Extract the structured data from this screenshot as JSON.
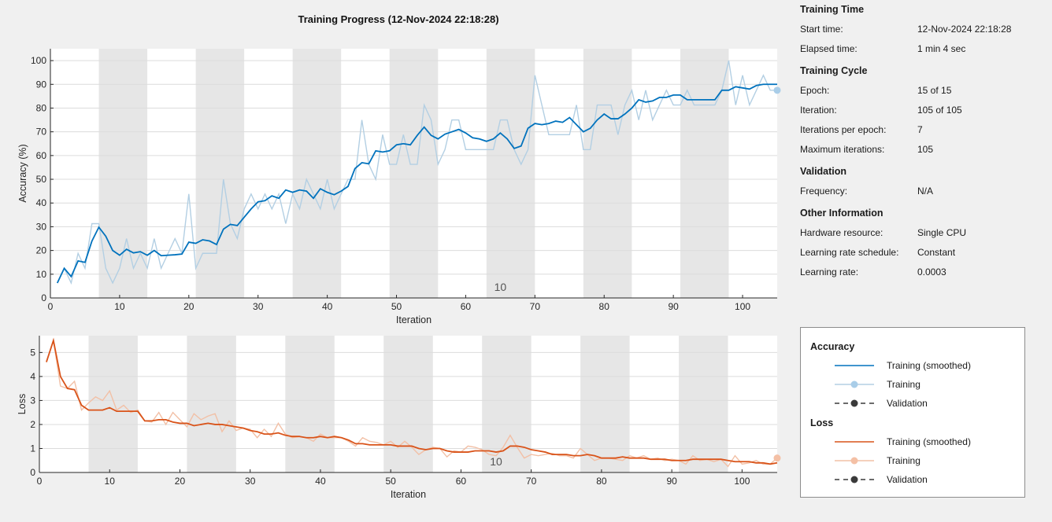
{
  "title": "Training Progress (12-Nov-2024 22:18:28)",
  "info": {
    "sections": [
      {
        "heading": "Training Time",
        "rows": [
          {
            "label": "Start time:",
            "value": "12-Nov-2024 22:18:28"
          },
          {
            "label": "Elapsed time:",
            "value": "1 min 4 sec"
          }
        ]
      },
      {
        "heading": "Training Cycle",
        "rows": [
          {
            "label": "Epoch:",
            "value": "15 of 15"
          },
          {
            "label": "Iteration:",
            "value": "105 of 105"
          },
          {
            "label": "Iterations per epoch:",
            "value": "7"
          },
          {
            "label": "Maximum iterations:",
            "value": "105"
          }
        ]
      },
      {
        "heading": "Validation",
        "rows": [
          {
            "label": "Frequency:",
            "value": "N/A"
          }
        ]
      },
      {
        "heading": "Other Information",
        "rows": [
          {
            "label": "Hardware resource:",
            "value": "Single CPU"
          },
          {
            "label": "Learning rate schedule:",
            "value": "Constant"
          },
          {
            "label": "Learning rate:",
            "value": "0.0003"
          }
        ]
      }
    ]
  },
  "legend": {
    "accuracy_heading": "Accuracy",
    "loss_heading": "Loss",
    "items": {
      "smoothed": "Training (smoothed)",
      "training": "Training",
      "validation": "Validation"
    }
  },
  "colors": {
    "accuracy_smoothed": "#0072bd",
    "accuracy_raw": "#b3cfe3",
    "accuracy_marker": "#a9cde8",
    "loss_smoothed": "#d95319",
    "loss_raw": "#f2c0a6",
    "loss_marker": "#f4c0a5",
    "validation": "#3a3a3a",
    "epoch_band": "#e6e6e6",
    "grid": "#dcdcdc"
  },
  "chart_data": [
    {
      "type": "line",
      "name": "accuracy",
      "xlabel": "Iteration",
      "ylabel": "Accuracy (%)",
      "xlim": [
        0,
        105
      ],
      "ylim": [
        0,
        105
      ],
      "xticks": [
        0,
        10,
        20,
        30,
        40,
        50,
        60,
        70,
        80,
        90,
        100
      ],
      "yticks": [
        0,
        10,
        20,
        30,
        40,
        50,
        60,
        70,
        80,
        90,
        100
      ],
      "grid": true,
      "iterations_per_epoch": 7,
      "epoch_marker_label": "10",
      "epoch_marker_x": 65,
      "series": [
        {
          "name": "Training (smoothed)",
          "x": [
            1,
            2,
            3,
            4,
            5,
            6,
            7,
            8,
            9,
            10,
            11,
            12,
            13,
            14,
            15,
            16,
            17,
            18,
            19,
            20,
            21,
            22,
            23,
            24,
            25,
            26,
            27,
            28,
            29,
            30,
            31,
            32,
            33,
            34,
            35,
            36,
            37,
            38,
            39,
            40,
            41,
            42,
            43,
            44,
            45,
            46,
            47,
            48,
            49,
            50,
            51,
            52,
            53,
            54,
            55,
            56,
            57,
            58,
            59,
            60,
            61,
            62,
            63,
            64,
            65,
            66,
            67,
            68,
            69,
            70,
            71,
            72,
            73,
            74,
            75,
            76,
            77,
            78,
            79,
            80,
            81,
            82,
            83,
            84,
            85,
            86,
            87,
            88,
            89,
            90,
            91,
            92,
            93,
            94,
            95,
            96,
            97,
            98,
            99,
            100,
            101,
            102,
            103,
            104,
            105
          ],
          "values": [
            6.3,
            12.5,
            9.0,
            15.6,
            15.0,
            24.0,
            29.8,
            26.0,
            20.0,
            18.0,
            20.5,
            19.0,
            19.5,
            18.0,
            20.0,
            17.8,
            18.0,
            18.2,
            18.5,
            23.5,
            23.0,
            24.5,
            24.0,
            22.5,
            29.0,
            31.0,
            30.5,
            34.0,
            37.5,
            40.5,
            41.0,
            43.0,
            42.0,
            45.5,
            44.5,
            45.5,
            45.0,
            42.0,
            46.0,
            44.5,
            43.5,
            45.0,
            47.0,
            54.5,
            57.0,
            56.5,
            62.0,
            61.5,
            62.0,
            64.5,
            65.0,
            64.5,
            68.5,
            72.0,
            68.5,
            67.0,
            69.0,
            70.0,
            71.0,
            69.5,
            67.5,
            67.0,
            66.0,
            67.0,
            69.5,
            67.0,
            63.0,
            64.0,
            71.5,
            73.5,
            73.0,
            73.5,
            74.5,
            74.0,
            76.0,
            73.0,
            70.0,
            71.5,
            75.0,
            77.5,
            75.5,
            75.5,
            77.5,
            80.0,
            83.5,
            82.5,
            83.0,
            84.5,
            84.5,
            85.5,
            85.5,
            83.5,
            83.5,
            83.5,
            83.5,
            83.5,
            87.5,
            87.5,
            89.0,
            88.5,
            88.0,
            89.5,
            90.0,
            90.0,
            90.0
          ]
        },
        {
          "name": "Training",
          "x": [
            1,
            2,
            3,
            4,
            5,
            6,
            7,
            8,
            9,
            10,
            11,
            12,
            13,
            14,
            15,
            16,
            17,
            18,
            19,
            20,
            21,
            22,
            23,
            24,
            25,
            26,
            27,
            28,
            29,
            30,
            31,
            32,
            33,
            34,
            35,
            36,
            37,
            38,
            39,
            40,
            41,
            42,
            43,
            44,
            45,
            46,
            47,
            48,
            49,
            50,
            51,
            52,
            53,
            54,
            55,
            56,
            57,
            58,
            59,
            60,
            61,
            62,
            63,
            64,
            65,
            66,
            67,
            68,
            69,
            70,
            71,
            72,
            73,
            74,
            75,
            76,
            77,
            78,
            79,
            80,
            81,
            82,
            83,
            84,
            85,
            86,
            87,
            88,
            89,
            90,
            91,
            92,
            93,
            94,
            95,
            96,
            97,
            98,
            99,
            100,
            101,
            102,
            103,
            104,
            105
          ],
          "values": [
            6.3,
            12.5,
            6.3,
            18.8,
            12.5,
            31.3,
            31.3,
            12.5,
            6.3,
            12.5,
            25.0,
            12.5,
            18.8,
            12.5,
            25.0,
            12.5,
            18.8,
            25.0,
            18.8,
            43.8,
            12.5,
            18.8,
            18.8,
            18.8,
            50.0,
            31.3,
            25.0,
            37.5,
            43.8,
            37.5,
            43.8,
            37.5,
            43.8,
            31.3,
            43.8,
            37.5,
            50.0,
            43.8,
            37.5,
            50.0,
            37.5,
            43.8,
            50.0,
            50.0,
            75.0,
            56.3,
            50.0,
            68.8,
            56.3,
            56.3,
            68.8,
            56.3,
            56.3,
            81.3,
            75.0,
            56.3,
            62.5,
            75.0,
            75.0,
            62.5,
            62.5,
            62.5,
            62.5,
            62.5,
            75.0,
            75.0,
            62.5,
            56.3,
            62.5,
            93.8,
            81.3,
            68.8,
            68.8,
            68.8,
            68.8,
            81.3,
            62.5,
            62.5,
            81.3,
            81.3,
            81.3,
            68.8,
            81.3,
            87.5,
            75.0,
            87.5,
            75.0,
            81.3,
            87.5,
            81.3,
            81.3,
            87.5,
            81.3,
            81.3,
            81.3,
            81.3,
            87.5,
            100.0,
            81.3,
            93.8,
            81.3,
            87.5,
            93.8,
            87.5,
            87.5
          ]
        }
      ],
      "final_marker": {
        "x": 105,
        "y": 87.5
      }
    },
    {
      "type": "line",
      "name": "loss",
      "xlabel": "Iteration",
      "ylabel": "Loss",
      "xlim": [
        0,
        105
      ],
      "ylim": [
        0,
        5.7
      ],
      "xticks": [
        0,
        10,
        20,
        30,
        40,
        50,
        60,
        70,
        80,
        90,
        100
      ],
      "yticks": [
        0,
        1,
        2,
        3,
        4,
        5
      ],
      "grid": true,
      "iterations_per_epoch": 7,
      "epoch_marker_label": "10",
      "epoch_marker_x": 65,
      "series": [
        {
          "name": "Training (smoothed)",
          "x": [
            1,
            2,
            3,
            4,
            5,
            6,
            7,
            8,
            9,
            10,
            11,
            12,
            13,
            14,
            15,
            16,
            17,
            18,
            19,
            20,
            21,
            22,
            23,
            24,
            25,
            26,
            27,
            28,
            29,
            30,
            31,
            32,
            33,
            34,
            35,
            36,
            37,
            38,
            39,
            40,
            41,
            42,
            43,
            44,
            45,
            46,
            47,
            48,
            49,
            50,
            51,
            52,
            53,
            54,
            55,
            56,
            57,
            58,
            59,
            60,
            61,
            62,
            63,
            64,
            65,
            66,
            67,
            68,
            69,
            70,
            71,
            72,
            73,
            74,
            75,
            76,
            77,
            78,
            79,
            80,
            81,
            82,
            83,
            84,
            85,
            86,
            87,
            88,
            89,
            90,
            91,
            92,
            93,
            94,
            95,
            96,
            97,
            98,
            99,
            100,
            101,
            102,
            103,
            104,
            105
          ],
          "values": [
            4.6,
            5.5,
            4.0,
            3.5,
            3.45,
            2.8,
            2.6,
            2.6,
            2.6,
            2.7,
            2.55,
            2.55,
            2.55,
            2.55,
            2.15,
            2.15,
            2.2,
            2.2,
            2.1,
            2.05,
            2.05,
            1.95,
            2.0,
            2.05,
            2.0,
            2.0,
            1.95,
            1.9,
            1.85,
            1.75,
            1.7,
            1.6,
            1.6,
            1.65,
            1.55,
            1.5,
            1.5,
            1.45,
            1.45,
            1.5,
            1.45,
            1.5,
            1.45,
            1.35,
            1.2,
            1.2,
            1.15,
            1.15,
            1.15,
            1.15,
            1.1,
            1.1,
            1.1,
            1.0,
            0.95,
            1.0,
            1.0,
            0.9,
            0.85,
            0.85,
            0.85,
            0.9,
            0.9,
            0.9,
            0.85,
            0.9,
            1.1,
            1.1,
            1.05,
            0.95,
            0.9,
            0.85,
            0.75,
            0.75,
            0.75,
            0.7,
            0.7,
            0.75,
            0.7,
            0.6,
            0.6,
            0.6,
            0.65,
            0.6,
            0.6,
            0.6,
            0.55,
            0.55,
            0.55,
            0.5,
            0.5,
            0.5,
            0.55,
            0.55,
            0.55,
            0.55,
            0.55,
            0.5,
            0.45,
            0.45,
            0.45,
            0.4,
            0.4,
            0.35,
            0.4
          ]
        },
        {
          "name": "Training",
          "x": [
            1,
            2,
            3,
            4,
            5,
            6,
            7,
            8,
            9,
            10,
            11,
            12,
            13,
            14,
            15,
            16,
            17,
            18,
            19,
            20,
            21,
            22,
            23,
            24,
            25,
            26,
            27,
            28,
            29,
            30,
            31,
            32,
            33,
            34,
            35,
            36,
            37,
            38,
            39,
            40,
            41,
            42,
            43,
            44,
            45,
            46,
            47,
            48,
            49,
            50,
            51,
            52,
            53,
            54,
            55,
            56,
            57,
            58,
            59,
            60,
            61,
            62,
            63,
            64,
            65,
            66,
            67,
            68,
            69,
            70,
            71,
            72,
            73,
            74,
            75,
            76,
            77,
            78,
            79,
            80,
            81,
            82,
            83,
            84,
            85,
            86,
            87,
            88,
            89,
            90,
            91,
            92,
            93,
            94,
            95,
            96,
            97,
            98,
            99,
            100,
            101,
            102,
            103,
            104,
            105
          ],
          "values": [
            4.6,
            5.5,
            3.6,
            3.5,
            3.8,
            2.6,
            2.9,
            3.15,
            3.0,
            3.4,
            2.6,
            2.8,
            2.5,
            2.6,
            2.15,
            2.1,
            2.5,
            2.0,
            2.5,
            2.2,
            1.9,
            2.45,
            2.2,
            2.35,
            2.45,
            1.7,
            2.15,
            1.75,
            1.85,
            1.8,
            1.45,
            1.8,
            1.5,
            2.05,
            1.6,
            1.45,
            1.5,
            1.45,
            1.3,
            1.6,
            1.45,
            1.45,
            1.45,
            1.3,
            1.1,
            1.45,
            1.3,
            1.25,
            1.15,
            1.3,
            1.05,
            1.3,
            1.05,
            0.75,
            0.95,
            1.05,
            1.0,
            0.65,
            0.9,
            0.85,
            1.1,
            1.05,
            0.95,
            0.75,
            0.7,
            1.05,
            1.55,
            1.05,
            0.6,
            0.75,
            0.7,
            0.75,
            0.8,
            0.7,
            0.7,
            0.6,
            1.0,
            0.75,
            0.5,
            0.6,
            0.6,
            0.55,
            0.5,
            0.7,
            0.6,
            0.7,
            0.55,
            0.6,
            0.5,
            0.55,
            0.5,
            0.35,
            0.7,
            0.5,
            0.55,
            0.45,
            0.55,
            0.25,
            0.7,
            0.35,
            0.4,
            0.5,
            0.35,
            0.35,
            0.6
          ]
        }
      ],
      "final_marker": {
        "x": 105,
        "y": 0.6
      }
    }
  ]
}
